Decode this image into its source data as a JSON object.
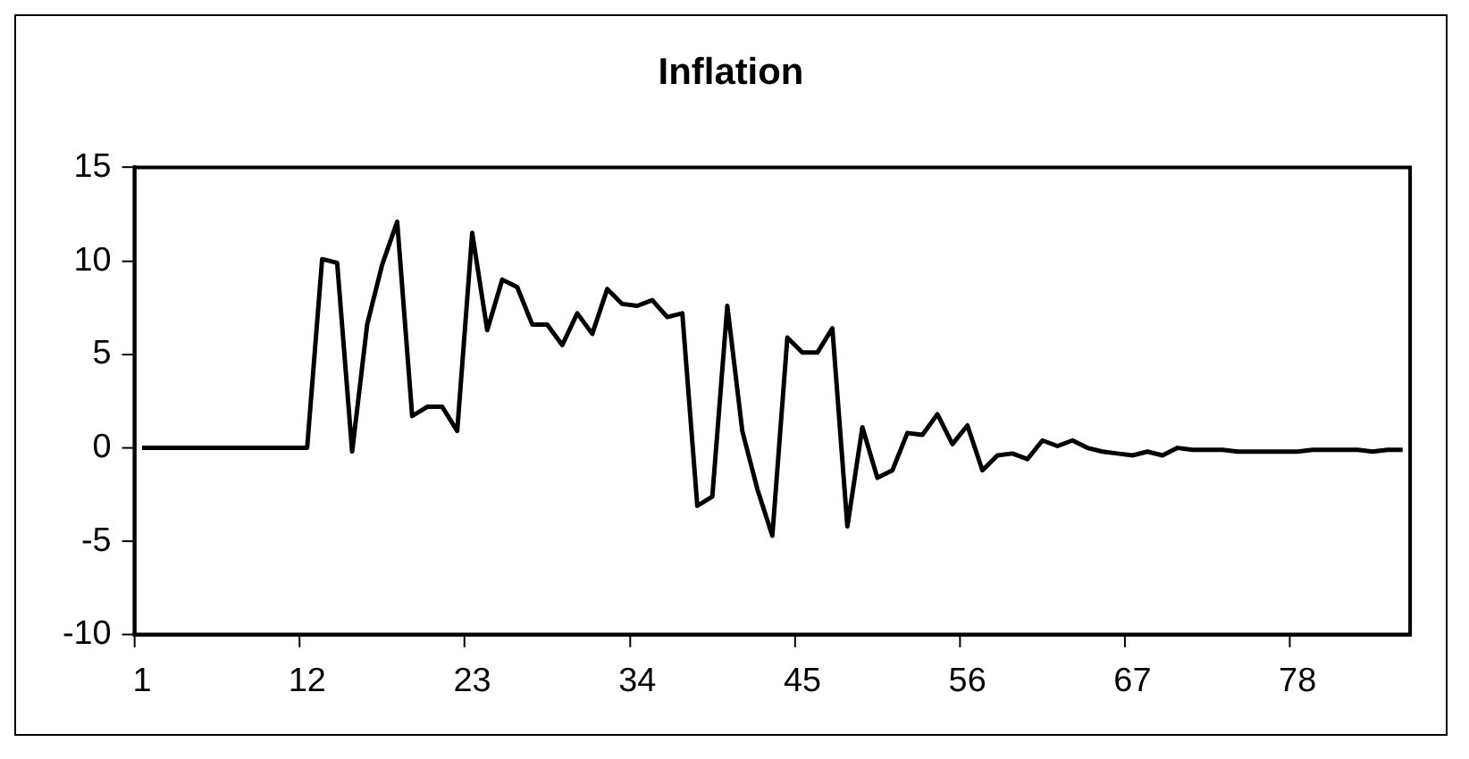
{
  "chart_data": {
    "type": "line",
    "title": "Inflation",
    "categories": [
      "1",
      null,
      null,
      null,
      null,
      null,
      null,
      null,
      null,
      null,
      null,
      "12",
      null,
      null,
      null,
      null,
      null,
      null,
      null,
      null,
      null,
      null,
      "23",
      null,
      null,
      null,
      null,
      null,
      null,
      null,
      null,
      null,
      null,
      "34",
      null,
      null,
      null,
      null,
      null,
      null,
      null,
      null,
      null,
      null,
      "45",
      null,
      null,
      null,
      null,
      null,
      null,
      null,
      null,
      null,
      null,
      "56",
      null,
      null,
      null,
      null,
      null,
      null,
      null,
      null,
      null,
      null,
      "67",
      null,
      null,
      null,
      null,
      null,
      null,
      null,
      null,
      null,
      null,
      "78",
      null,
      null,
      null,
      null,
      null,
      null,
      null
    ],
    "series": [
      {
        "color": "#000000",
        "values": [
          0,
          0,
          0,
          0,
          0,
          0,
          0,
          0,
          0,
          0,
          0,
          0,
          10.1,
          9.9,
          -0.2,
          6.6,
          9.8,
          12.1,
          1.7,
          2.2,
          2.2,
          0.9,
          11.5,
          6.3,
          9.0,
          8.6,
          6.6,
          6.6,
          5.5,
          7.2,
          6.1,
          8.5,
          7.7,
          7.6,
          7.9,
          7.0,
          7.2,
          -3.1,
          -2.6,
          7.6,
          0.9,
          -2.2,
          -4.7,
          5.9,
          5.1,
          5.1,
          6.4,
          -4.2,
          1.1,
          -1.6,
          -1.2,
          0.8,
          0.7,
          1.8,
          0.2,
          1.2,
          -1.2,
          -0.4,
          -0.3,
          -0.6,
          0.4,
          0.1,
          0.4,
          0.0,
          -0.2,
          -0.3,
          -0.4,
          -0.2,
          -0.4,
          0.0,
          -0.1,
          -0.1,
          -0.1,
          -0.2,
          -0.2,
          -0.2,
          -0.2,
          -0.2,
          -0.1,
          -0.1,
          -0.1,
          -0.1,
          -0.2,
          -0.1,
          -0.1
        ]
      }
    ],
    "ylim": [
      -10,
      15
    ],
    "yticks": [
      -10,
      -5,
      0,
      5,
      10,
      15
    ],
    "grid": false,
    "legend": false,
    "marker": "none",
    "line_style": "solid"
  }
}
